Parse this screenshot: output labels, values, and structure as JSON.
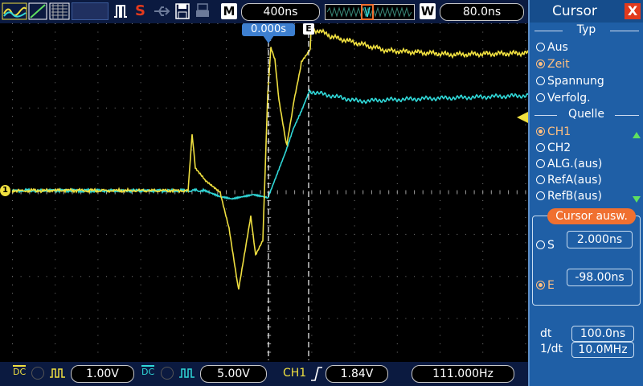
{
  "topbar": {
    "timebase_letter": "M",
    "timebase_value": "400ns",
    "window_letter": "W",
    "window_value": "80.0ns",
    "trigger_pos_marker": "0.000s"
  },
  "bottombar": {
    "ch1_coupling": "DC",
    "ch1_scale": "1.00V",
    "ch2_coupling": "DC",
    "ch2_scale": "5.00V",
    "trigger_source": "CH1",
    "trigger_level": "1.84V",
    "frequency": "111.000Hz"
  },
  "panel": {
    "title": "Cursor",
    "close": "X",
    "typ_title": "Typ",
    "typ_options": [
      "Aus",
      "Zeit",
      "Spannung",
      "Verfolg."
    ],
    "typ_selected": 1,
    "quelle_title": "Quelle",
    "quelle_options": [
      "CH1",
      "CH2",
      "ALG.(aus)",
      "RefA(aus)",
      "RefB(aus)"
    ],
    "quelle_selected": 0,
    "cursor_title": "Cursor  ausw.",
    "s_label": "S",
    "s_value": "2.000ns",
    "e_label": "E",
    "e_value": "-98.00ns",
    "dt_label": "dt",
    "dt_value": "100.0ns",
    "inv_dt_label": "1/dt",
    "inv_dt_value": "10.0MHz"
  },
  "cursor_markers": {
    "end_label": "E"
  },
  "colors": {
    "ch1": "#f0e040",
    "ch2": "#30d8d8",
    "accent": "#f07030",
    "panel": "#1f5fa6"
  }
}
